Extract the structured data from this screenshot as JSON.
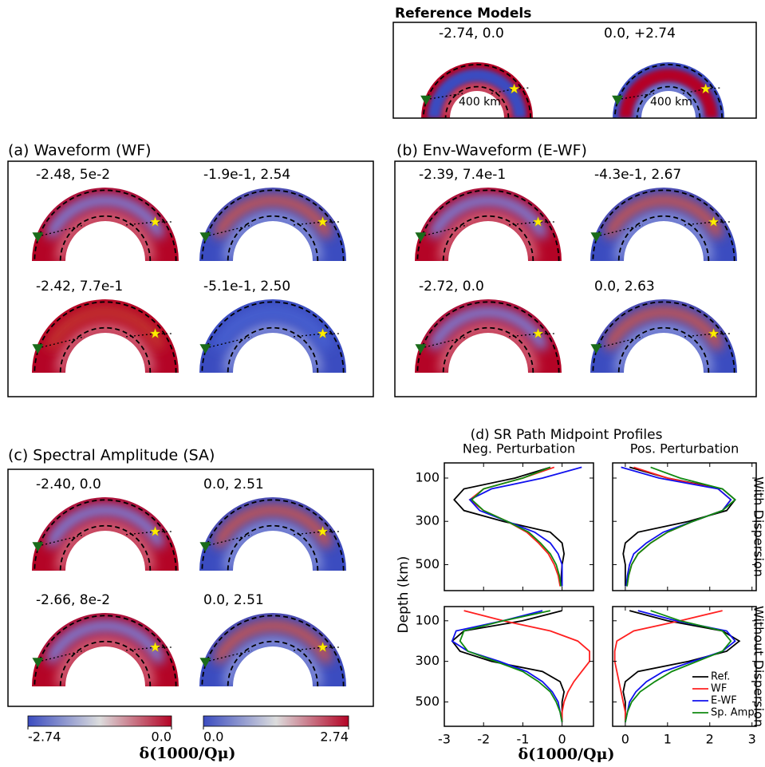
{
  "reference": {
    "title": "Reference Models",
    "depth_label": "400 km",
    "models": [
      {
        "label": "-2.74, 0.0",
        "background": "#b40426",
        "anomaly": "#3b4cc0"
      },
      {
        "label": "0.0, +2.74",
        "background": "#3b4cc0",
        "anomaly": "#b40426"
      }
    ]
  },
  "panels": [
    {
      "title": "(a) Waveform (WF)",
      "models": [
        {
          "label": "-2.48, 5e-2",
          "background": "#b40426",
          "anomaly": "#6f92f3"
        },
        {
          "label": "-1.9e-1, 2.54",
          "background": "#3b4cc0",
          "anomaly": "#d8553f"
        },
        {
          "label": "-2.42, 7.7e-1",
          "background": "#b40426",
          "anomaly": "#c43a32"
        },
        {
          "label": "-5.1e-1, 2.50",
          "background": "#3b4cc0",
          "anomaly": "#4a63d3"
        }
      ]
    },
    {
      "title": "(b) Env-Waveform (E-WF)",
      "models": [
        {
          "label": "-2.39, 7.4e-1",
          "background": "#b40426",
          "anomaly": "#6f92f3"
        },
        {
          "label": "-4.3e-1, 2.67",
          "background": "#3b4cc0",
          "anomaly": "#d8553f"
        },
        {
          "label": "-2.72, 0.0",
          "background": "#b40426",
          "anomaly": "#6f92f3"
        },
        {
          "label": "0.0, 2.63",
          "background": "#3b4cc0",
          "anomaly": "#d8553f"
        }
      ]
    },
    {
      "title": "(c) Spectral Amplitude  (SA)",
      "models": [
        {
          "label": "-2.40, 0.0",
          "background": "#b40426",
          "anomaly": "#6f92f3"
        },
        {
          "label": "0.0, 2.51",
          "background": "#3b4cc0",
          "anomaly": "#d8553f"
        },
        {
          "label": "-2.66, 8e-2",
          "background": "#b40426",
          "anomaly": "#6f92f3"
        },
        {
          "label": "0.0, 2.51",
          "background": "#3b4cc0",
          "anomaly": "#d8553f"
        }
      ]
    }
  ],
  "colorbars": [
    {
      "lim": [
        -2.74,
        0
      ],
      "ticks": [
        -2.74,
        {
          "value": 0,
          "label": "0.0"
        }
      ],
      "colors": [
        "#3b4cc0",
        "#dcdddd",
        "#b40426"
      ]
    },
    {
      "lim": [
        0,
        2.74
      ],
      "ticks": [
        {
          "value": 0,
          "label": "0.0"
        },
        2.74
      ],
      "colors": [
        "#3b4cc0",
        "#dcdddd",
        "#b40426"
      ]
    }
  ],
  "colorbar_label": "δ(1000/Qμ)",
  "chart_data": {
    "type": "line",
    "title": "(d) SR Path Midpoint Profiles",
    "xlabel": "δ(1000/Qμ)",
    "ylabel": "Depth (km)",
    "y": [
      50,
      100,
      150,
      200,
      250,
      300,
      350,
      400,
      450,
      500,
      550,
      600
    ],
    "ylim": [
      30,
      620
    ],
    "yticks": [
      100,
      300,
      500
    ],
    "legend": [
      {
        "name": "Ref.",
        "color": "#000000"
      },
      {
        "name": "WF",
        "color": "#ff2020"
      },
      {
        "name": "E-WF",
        "color": "#1010ee"
      },
      {
        "name": "Sp. Amp",
        "color": "#108a10"
      }
    ],
    "columns": [
      {
        "title": "Neg. Perturbation",
        "xlim": [
          -3,
          0.8
        ],
        "xticks": [
          -3,
          -2,
          -1,
          0
        ]
      },
      {
        "title": "Pos. Perturbation",
        "xlim": [
          -0.3,
          3.1
        ],
        "xticks": [
          0,
          1,
          2,
          3
        ]
      }
    ],
    "rows": [
      {
        "title": "With Dispersion",
        "cells": [
          {
            "series": [
              {
                "values": [
                  -0.3,
                  -1.2,
                  -2.5,
                  -2.75,
                  -2.5,
                  -1.5,
                  -0.3,
                  0.0,
                  0.05,
                  0.0,
                  -0.02,
                  -0.02
                ]
              },
              {
                "values": [
                  -0.2,
                  -1.0,
                  -2.0,
                  -2.35,
                  -2.0,
                  -1.4,
                  -0.9,
                  -0.6,
                  -0.35,
                  -0.2,
                  -0.1,
                  -0.05
                ]
              },
              {
                "values": [
                  0.5,
                  -0.5,
                  -1.8,
                  -2.35,
                  -2.1,
                  -1.4,
                  -0.7,
                  -0.3,
                  -0.1,
                  0.0,
                  0.0,
                  0.0
                ]
              },
              {
                "values": [
                  -0.3,
                  -1.0,
                  -2.0,
                  -2.3,
                  -2.0,
                  -1.4,
                  -0.85,
                  -0.55,
                  -0.3,
                  -0.15,
                  -0.07,
                  -0.03
                ]
              }
            ]
          },
          {
            "series": [
              {
                "values": [
                  0.1,
                  1.0,
                  2.3,
                  2.6,
                  2.4,
                  1.5,
                  0.3,
                  0.0,
                  -0.05,
                  0.0,
                  0.0,
                  0.0
                ]
              },
              {
                "values": [
                  0.2,
                  1.0,
                  2.2,
                  2.5,
                  2.3,
                  1.6,
                  1.0,
                  0.6,
                  0.3,
                  0.15,
                  0.08,
                  0.04
                ]
              },
              {
                "values": [
                  -0.1,
                  0.8,
                  2.2,
                  2.5,
                  2.3,
                  1.6,
                  0.9,
                  0.5,
                  0.2,
                  0.1,
                  0.05,
                  0.02
                ]
              },
              {
                "values": [
                  0.6,
                  1.3,
                  2.3,
                  2.6,
                  2.3,
                  1.6,
                  1.0,
                  0.6,
                  0.3,
                  0.15,
                  0.08,
                  0.04
                ]
              }
            ]
          }
        ]
      },
      {
        "title": "Without Dispersion",
        "cells": [
          {
            "series": [
              {
                "values": [
                  0.0,
                  -1.0,
                  -2.5,
                  -2.8,
                  -2.6,
                  -1.8,
                  -0.5,
                  -0.05,
                  0.05,
                  0.0,
                  0.0,
                  0.0
                ]
              },
              {
                "values": [
                  -2.5,
                  -1.5,
                  -0.3,
                  0.4,
                  0.7,
                  0.7,
                  0.5,
                  0.3,
                  0.15,
                  0.05,
                  0.0,
                  0.0
                ]
              },
              {
                "values": [
                  -0.5,
                  -1.5,
                  -2.7,
                  -2.8,
                  -2.4,
                  -1.6,
                  -0.9,
                  -0.5,
                  -0.25,
                  -0.1,
                  -0.05,
                  0.0
                ]
              },
              {
                "values": [
                  -0.3,
                  -1.5,
                  -2.5,
                  -2.6,
                  -2.4,
                  -1.7,
                  -1.0,
                  -0.6,
                  -0.3,
                  -0.15,
                  -0.05,
                  0.0
                ]
              }
            ]
          },
          {
            "series": [
              {
                "values": [
                  0.1,
                  1.0,
                  2.3,
                  2.7,
                  2.4,
                  1.5,
                  0.3,
                  0.0,
                  -0.05,
                  0.0,
                  0.0,
                  0.0
                ]
              },
              {
                "values": [
                  2.3,
                  1.3,
                  0.2,
                  -0.2,
                  -0.25,
                  -0.25,
                  -0.2,
                  -0.15,
                  -0.1,
                  -0.05,
                  0.0,
                  0.0
                ]
              },
              {
                "values": [
                  0.3,
                  1.2,
                  2.4,
                  2.6,
                  2.3,
                  1.6,
                  0.9,
                  0.5,
                  0.25,
                  0.1,
                  0.05,
                  0.0
                ]
              },
              {
                "values": [
                  0.6,
                  1.3,
                  2.3,
                  2.5,
                  2.3,
                  1.7,
                  1.1,
                  0.7,
                  0.35,
                  0.15,
                  0.05,
                  0.0
                ]
              }
            ]
          }
        ]
      }
    ]
  }
}
